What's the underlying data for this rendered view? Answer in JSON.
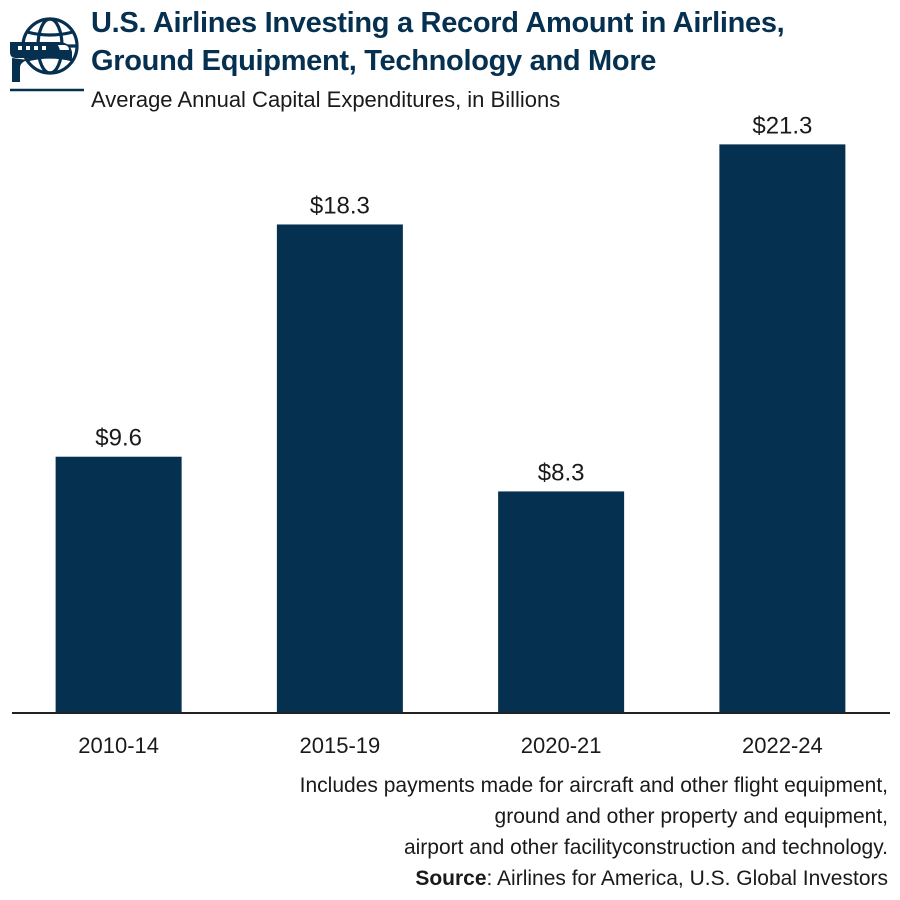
{
  "header": {
    "title_line1": "U.S. Airlines Investing a Record Amount in Airlines,",
    "title_line2": "Ground Equipment, Technology and More",
    "subtitle": "Average Annual Capital Expenditures, in Billions"
  },
  "colors": {
    "bar": "#06304f",
    "title": "#06304f",
    "axis": "#222222"
  },
  "chart_data": {
    "type": "bar",
    "title": "U.S. Airlines Investing a Record Amount in Airlines, Ground Equipment, Technology and More",
    "subtitle": "Average Annual Capital Expenditures, in Billions",
    "xlabel": "",
    "ylabel": "",
    "categories": [
      "2010-14",
      "2015-19",
      "2020-21",
      "2022-24"
    ],
    "values": [
      9.6,
      18.3,
      8.3,
      21.3
    ],
    "data_labels": [
      "$9.6",
      "$18.3",
      "$8.3",
      "$21.3"
    ],
    "ylim": [
      0,
      22.7
    ],
    "grid": false,
    "legend": "none"
  },
  "footnote": {
    "line1": "Includes payments made for aircraft and other flight equipment,",
    "line2": "ground and other property and equipment,",
    "line3": "airport and other facilityconstruction and technology.",
    "source_label": "Source",
    "source_text": ": Airlines for America, U.S. Global Investors"
  }
}
